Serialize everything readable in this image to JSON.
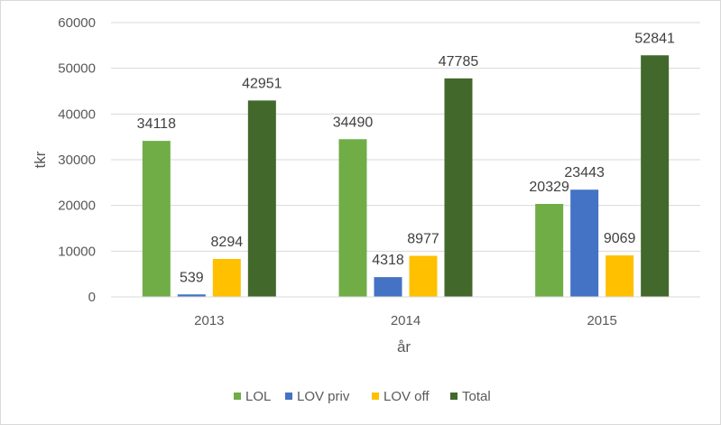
{
  "chart_data": {
    "type": "bar",
    "title": "",
    "xlabel": "år",
    "ylabel": "tkr",
    "ylim": [
      0,
      60000
    ],
    "yticks": [
      0,
      10000,
      20000,
      30000,
      40000,
      50000,
      60000
    ],
    "grid": true,
    "legend_position": "bottom",
    "categories": [
      "2013",
      "2014",
      "2015"
    ],
    "series": [
      {
        "name": "LOL",
        "color": "#70ad47",
        "values": [
          34118,
          34490,
          20329
        ]
      },
      {
        "name": "LOV priv",
        "color": "#4472c4",
        "values": [
          539,
          4318,
          23443
        ]
      },
      {
        "name": "LOV off",
        "color": "#ffc000",
        "values": [
          8294,
          8977,
          9069
        ]
      },
      {
        "name": "Total",
        "color": "#43682b",
        "values": [
          42951,
          47785,
          52841
        ]
      }
    ]
  }
}
